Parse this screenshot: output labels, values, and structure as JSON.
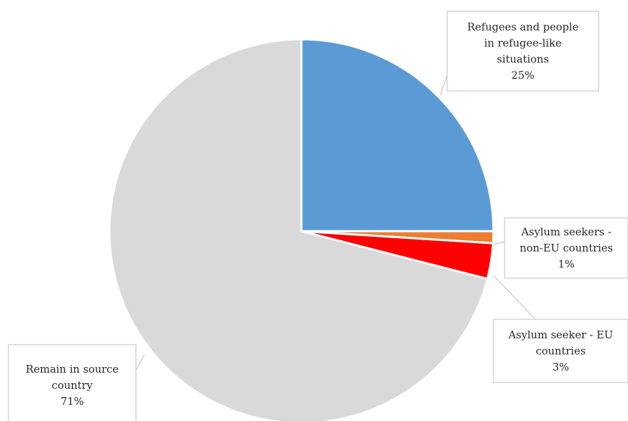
{
  "chart_data": {
    "type": "pie",
    "title": "",
    "start_angle_deg": 0,
    "direction": "clockwise",
    "slices": [
      {
        "label_lines": [
          "Refugees and people",
          "in refugee-like",
          "situations"
        ],
        "value": 25,
        "value_label": "25%",
        "color": "#5b9bd5"
      },
      {
        "label_lines": [
          "Asylum seekers -",
          "non-EU countries"
        ],
        "value": 1,
        "value_label": "1%",
        "color": "#ed7d31"
      },
      {
        "label_lines": [
          "Asylum seeker - EU",
          "countries"
        ],
        "value": 3,
        "value_label": "3%",
        "color": "#ff0000"
      },
      {
        "label_lines": [
          "Remain in source",
          "country"
        ],
        "value": 71,
        "value_label": "71%",
        "color": "#d9d9d9"
      }
    ]
  }
}
